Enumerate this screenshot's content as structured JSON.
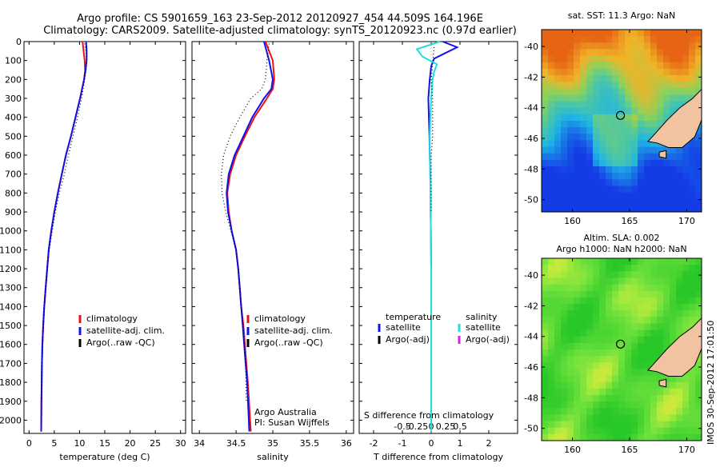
{
  "header": {
    "line1": "Argo profile: CS 5901659_163 23-Sep-2012 20120927_454 44.509S 164.196E",
    "line2": "Climatology: CARS2009. Satellite-adjusted climatology: synTS_20120923.nc (0.97d earlier)"
  },
  "footer_credit": {
    "line1": "Argo Australia",
    "line2": "PI: Susan Wijffels"
  },
  "watermark": "IMOS 30-Sep-2012 17:01:50",
  "colors": {
    "climatology": "#ee1111",
    "satellite": "#1111ee",
    "argo": "#000000",
    "satellite_salinity": "#22dddd",
    "argo_salinity": "#dd22dd",
    "land": "#f2c3a0",
    "marker": "#000000"
  },
  "chart_data": [
    {
      "type": "line",
      "xlabel": "temperature (deg C)",
      "ylabel": "",
      "xlim": [
        -1,
        31
      ],
      "ylim": [
        2070,
        0
      ],
      "xticks": [
        0,
        5,
        10,
        15,
        20,
        25,
        30
      ],
      "yticks": [
        0,
        100,
        200,
        300,
        400,
        500,
        600,
        700,
        800,
        900,
        1000,
        1100,
        1200,
        1300,
        1400,
        1500,
        1600,
        1700,
        1800,
        1900,
        2000
      ],
      "legend_position": "lower-center",
      "series": [
        {
          "name": "climatology",
          "color": "#ee1111",
          "style": "solid",
          "x": [
            10.6,
            10.8,
            11.0,
            11.1,
            10.9,
            10.1,
            9.2,
            8.3,
            7.3,
            6.5,
            5.7,
            5.0,
            4.4,
            3.9,
            3.6,
            3.3,
            3.0,
            2.8,
            2.65,
            2.55,
            2.45,
            2.4
          ],
          "y": [
            0,
            50,
            100,
            150,
            200,
            300,
            400,
            500,
            600,
            700,
            800,
            900,
            1000,
            1100,
            1200,
            1300,
            1400,
            1500,
            1600,
            1700,
            1900,
            2060
          ]
        },
        {
          "name": "satellite-adj. clim.",
          "color": "#1111ee",
          "style": "solid",
          "x": [
            11.3,
            11.4,
            11.4,
            11.2,
            10.9,
            10.1,
            9.2,
            8.3,
            7.3,
            6.5,
            5.7,
            5.0,
            4.4,
            3.9,
            3.6,
            3.3,
            3.0,
            2.8,
            2.65,
            2.55,
            2.45,
            2.4
          ],
          "y": [
            0,
            50,
            100,
            150,
            200,
            300,
            400,
            500,
            600,
            700,
            800,
            900,
            1000,
            1100,
            1200,
            1300,
            1400,
            1500,
            1600,
            1700,
            1900,
            2060
          ]
        },
        {
          "name": "Argo(..raw -QC)",
          "color": "#000000",
          "style": "dotted",
          "x": [
            11.0,
            11.3,
            11.4,
            11.3,
            11.0,
            10.4,
            9.6,
            8.7,
            7.8,
            7.0,
            6.0,
            5.2,
            4.6,
            4.0,
            3.6,
            3.3,
            3.0,
            2.8,
            2.65,
            2.55,
            2.45
          ],
          "y": [
            10,
            50,
            100,
            150,
            200,
            300,
            400,
            500,
            600,
            700,
            800,
            900,
            1000,
            1100,
            1200,
            1300,
            1400,
            1500,
            1600,
            1700,
            1900
          ]
        }
      ]
    },
    {
      "type": "line",
      "xlabel": "salinity",
      "ylabel": "",
      "xlim": [
        33.9,
        36.1
      ],
      "ylim": [
        2070,
        0
      ],
      "xticks": [
        34,
        34.5,
        35,
        35.5,
        36
      ],
      "yticks": [
        0,
        100,
        200,
        300,
        400,
        500,
        600,
        700,
        800,
        900,
        1000,
        1100,
        1200,
        1300,
        1400,
        1500,
        1600,
        1700,
        1800,
        1900,
        2000
      ],
      "legend_position": "lower-center",
      "series": [
        {
          "name": "climatology",
          "color": "#ee1111",
          "style": "solid",
          "x": [
            34.9,
            35.0,
            35.02,
            35.0,
            34.92,
            34.75,
            34.62,
            34.5,
            34.42,
            34.38,
            34.4,
            34.44,
            34.5,
            34.53,
            34.55,
            34.57,
            34.6,
            34.62,
            34.64,
            34.66,
            34.7
          ],
          "y": [
            0,
            100,
            200,
            250,
            300,
            400,
            500,
            600,
            700,
            800,
            900,
            1000,
            1100,
            1200,
            1300,
            1400,
            1500,
            1600,
            1700,
            1800,
            2060
          ]
        },
        {
          "name": "satellite-adj. clim.",
          "color": "#1111ee",
          "style": "solid",
          "x": [
            34.88,
            34.95,
            35.0,
            34.98,
            34.88,
            34.72,
            34.6,
            34.48,
            34.4,
            34.37,
            34.39,
            34.44,
            34.5,
            34.53,
            34.55,
            34.57,
            34.59,
            34.61,
            34.63,
            34.65,
            34.68
          ],
          "y": [
            0,
            100,
            200,
            250,
            300,
            400,
            500,
            600,
            700,
            800,
            900,
            1000,
            1100,
            1200,
            1300,
            1400,
            1500,
            1600,
            1700,
            1800,
            2060
          ]
        },
        {
          "name": "Argo(..raw -QC)",
          "color": "#000000",
          "style": "dotted",
          "x": [
            34.95,
            34.92,
            34.9,
            34.85,
            34.7,
            34.55,
            34.42,
            34.33,
            34.3,
            34.31,
            34.36,
            34.43,
            34.5,
            34.53,
            34.55,
            34.57,
            34.59,
            34.61,
            34.63,
            34.64
          ],
          "y": [
            10,
            100,
            200,
            250,
            300,
            400,
            500,
            600,
            700,
            800,
            900,
            1000,
            1100,
            1200,
            1300,
            1400,
            1500,
            1600,
            1700,
            1900
          ]
        }
      ]
    },
    {
      "type": "line",
      "xlabel": "T difference from climatology",
      "xlabel2": "S difference from climatology",
      "ylabel": "",
      "xlim": [
        -2.5,
        3
      ],
      "ylim": [
        2070,
        0
      ],
      "xticks": [
        -2,
        -1,
        0,
        1,
        2
      ],
      "xticks2": [
        -0.5,
        -0.25,
        0,
        0.25,
        0.5
      ],
      "xticks2_labels": [
        "-0.5",
        "-0.25",
        "0",
        "0.25",
        "0.5"
      ],
      "yticks": [
        0,
        100,
        200,
        300,
        400,
        500,
        600,
        700,
        800,
        900,
        1000,
        1100,
        1200,
        1300,
        1400,
        1500,
        1600,
        1700,
        1800,
        1900,
        2000
      ],
      "legend_position": "lower-center",
      "legend_groups": [
        {
          "title": "temperature",
          "items": [
            {
              "name": "satellite",
              "color": "#1111ee"
            },
            {
              "name": "Argo(-adj)",
              "color": "#000000"
            }
          ]
        },
        {
          "title": "salinity",
          "items": [
            {
              "name": "satellite",
              "color": "#22dddd"
            },
            {
              "name": "Argo(-adj)",
              "color": "#dd22dd"
            }
          ]
        }
      ],
      "series": [
        {
          "name": "satellite",
          "group": "temperature",
          "color": "#1111ee",
          "x": [
            0.4,
            0.9,
            0.5,
            0.1,
            0.0,
            -0.05,
            -0.1,
            -0.08,
            -0.06,
            -0.05,
            -0.03,
            -0.02,
            -0.02,
            -0.01,
            0,
            0,
            0,
            0,
            0,
            0
          ],
          "y": [
            0,
            30,
            60,
            90,
            130,
            200,
            300,
            400,
            500,
            600,
            700,
            800,
            900,
            1000,
            1200,
            1400,
            1600,
            1800,
            1900,
            2060
          ]
        },
        {
          "name": "satellite",
          "group": "salinity",
          "color": "#22dddd",
          "x": [
            0.3,
            -0.5,
            -0.3,
            0.2,
            0.1,
            0.05,
            0.0,
            -0.03,
            -0.05,
            -0.05,
            -0.04,
            -0.02,
            -0.02,
            -0.01,
            0,
            0,
            0,
            0,
            0,
            0
          ],
          "y": [
            0,
            40,
            80,
            120,
            160,
            200,
            300,
            400,
            500,
            600,
            700,
            800,
            900,
            1000,
            1200,
            1400,
            1600,
            1800,
            1900,
            2060
          ]
        },
        {
          "name": "Argo(-adj)",
          "group": "temperature",
          "color": "#000000",
          "style": "dotted",
          "x": [
            0.1,
            0.0,
            0.05,
            0.05,
            0.05,
            0.0,
            0.0,
            0.0,
            0.0
          ],
          "y": [
            30,
            200,
            300,
            400,
            500,
            600,
            700,
            800,
            900
          ]
        }
      ]
    }
  ],
  "maps": [
    {
      "title": "sat. SST: 11.3 Argo: NaN",
      "xticks": [
        160,
        165,
        170
      ],
      "yticks": [
        -40,
        -42,
        -44,
        -46,
        -48,
        -50
      ],
      "xlim": [
        157.3,
        171.3
      ],
      "ylim": [
        -50.8,
        -38.9
      ],
      "marker": {
        "lon": 164.2,
        "lat": -44.5
      },
      "palette": "sst"
    },
    {
      "title": "Altim. SLA: 0.002",
      "title2": "Argo h1000: NaN h2000: NaN",
      "xticks": [
        160,
        165,
        170
      ],
      "yticks": [
        -40,
        -42,
        -44,
        -46,
        -48,
        -50
      ],
      "xlim": [
        157.3,
        171.3
      ],
      "ylim": [
        -50.8,
        -38.9
      ],
      "marker": {
        "lon": 164.2,
        "lat": -44.5
      },
      "palette": "sla"
    }
  ]
}
